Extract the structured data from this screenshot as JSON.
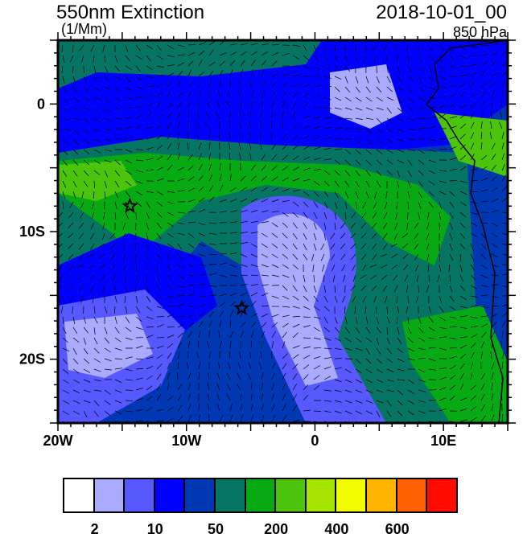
{
  "title": "550nm Extinction",
  "units": "(1/Mm)",
  "date": "2018-10-01_00",
  "level": "850 hPa",
  "map": {
    "lon_range": [
      -20,
      15
    ],
    "lat_range": [
      -25,
      5
    ],
    "lon_labels": [
      {
        "lon": -20,
        "text": "20W"
      },
      {
        "lon": -10,
        "text": "10W"
      },
      {
        "lon": 0,
        "text": "0"
      },
      {
        "lon": 10,
        "text": "10E"
      }
    ],
    "lat_labels": [
      {
        "lat": 0,
        "text": "0"
      },
      {
        "lat": -10,
        "text": "10S"
      },
      {
        "lat": -20,
        "text": "20S"
      }
    ],
    "markers": [
      {
        "type": "star",
        "lon": -14.4,
        "lat": -8.0
      },
      {
        "type": "star",
        "lon": -5.7,
        "lat": -16.0
      }
    ]
  },
  "colorbar": {
    "colors": [
      "#ffffff",
      "#aaaaff",
      "#5858ff",
      "#0000ff",
      "#0038b4",
      "#067462",
      "#08aa14",
      "#4cc40c",
      "#a4e400",
      "#f4fc00",
      "#ffb400",
      "#ff6000",
      "#ff0c00"
    ],
    "labels": [
      {
        "boundary": 1,
        "text": "2"
      },
      {
        "boundary": 3,
        "text": "10"
      },
      {
        "boundary": 5,
        "text": "50"
      },
      {
        "boundary": 7,
        "text": "200"
      },
      {
        "boundary": 9,
        "text": "400"
      },
      {
        "boundary": 11,
        "text": "600"
      }
    ]
  }
}
